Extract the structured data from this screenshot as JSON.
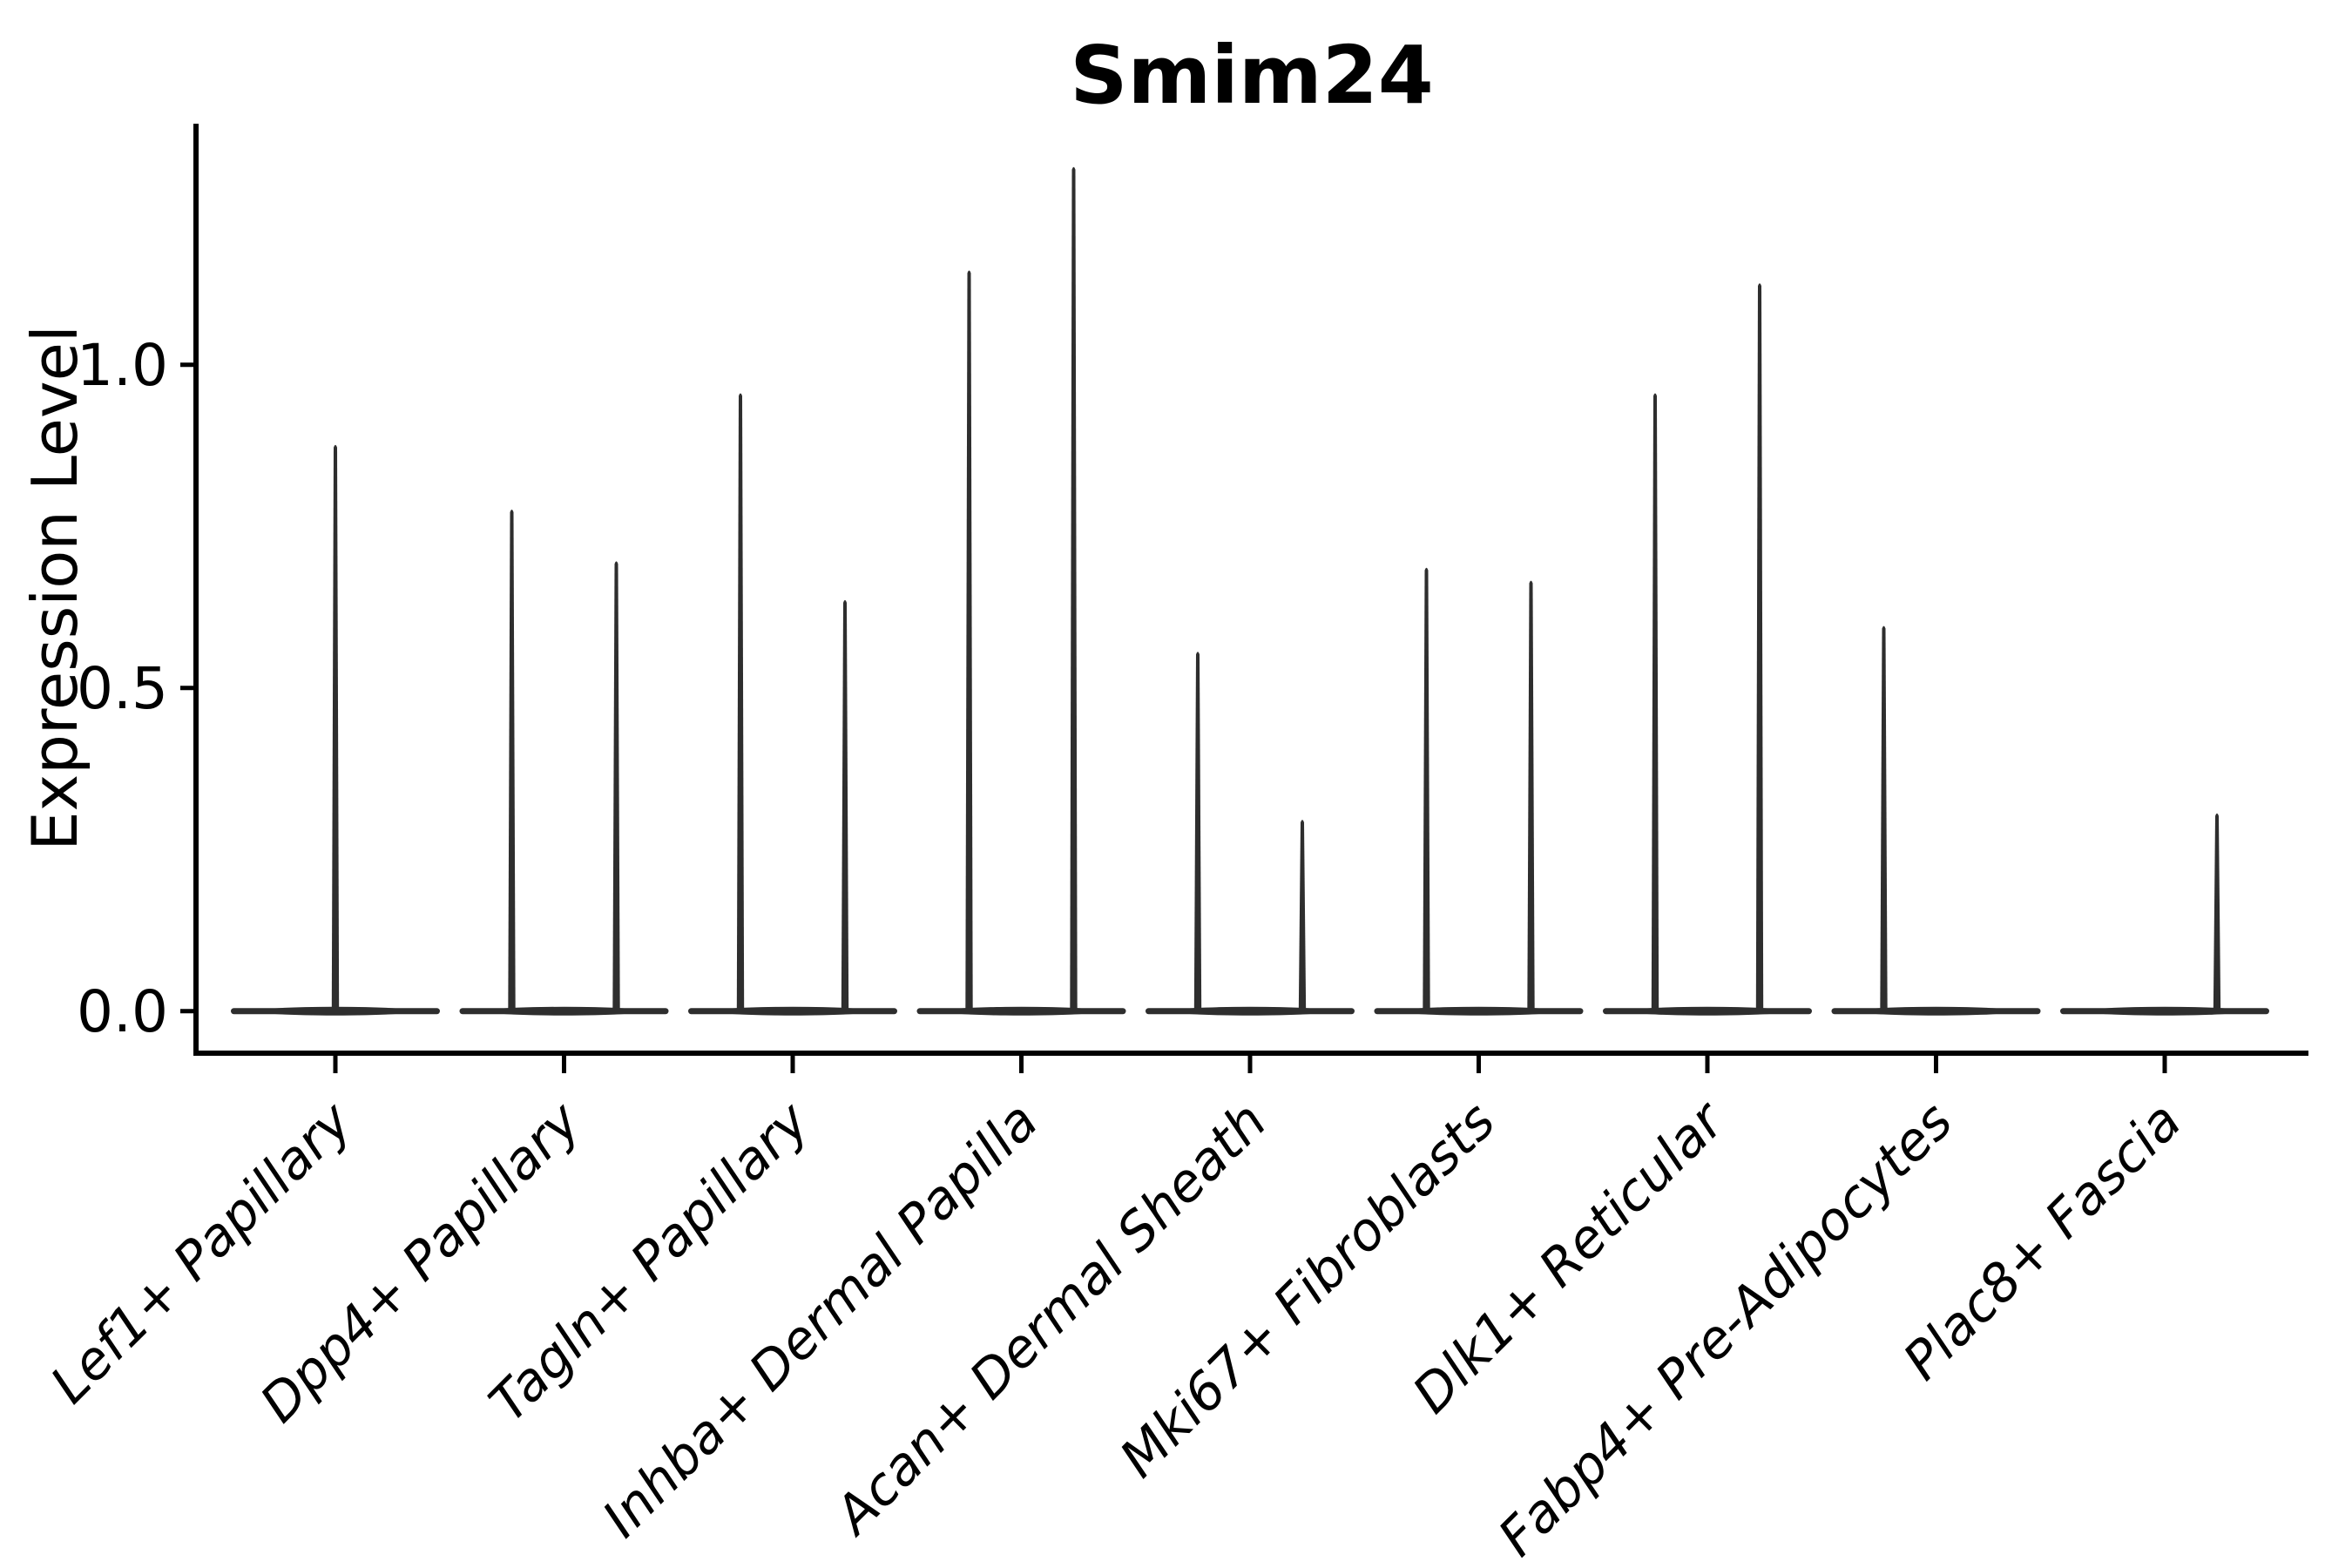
{
  "chart_data": {
    "type": "violin",
    "title": "Smim24",
    "ylabel": "Expression Level",
    "xlabel": "",
    "legend": "none",
    "grid": false,
    "ylim": [
      -0.065,
      1.373
    ],
    "yticks": [
      {
        "value": 0.0,
        "label": "0.0"
      },
      {
        "value": 0.5,
        "label": "0.5"
      },
      {
        "value": 1.0,
        "label": "1.0"
      }
    ],
    "categories": [
      "Lef1+ Papillary",
      "Dpp4+ Papillary",
      "Tagln+ Papillary",
      "Inhba+ Dermal Papilla",
      "Acan+ Dermal Sheath",
      "Mki67+ Fibroblasts",
      "Dlk1+ Reticular",
      "Fabp4+ Pre-Adipocytes",
      "Plac8+ Fascia"
    ],
    "violins": [
      {
        "category": "Lef1+ Papillary",
        "baseline_value": 0.0,
        "spikes": [
          {
            "pos": "center",
            "value": 0.88
          }
        ]
      },
      {
        "category": "Dpp4+ Papillary",
        "baseline_value": 0.0,
        "spikes": [
          {
            "pos": "left",
            "value": 0.78
          },
          {
            "pos": "right",
            "value": 0.7
          }
        ]
      },
      {
        "category": "Tagln+ Papillary",
        "baseline_value": 0.0,
        "spikes": [
          {
            "pos": "left",
            "value": 0.96
          },
          {
            "pos": "right",
            "value": 0.64
          }
        ]
      },
      {
        "category": "Inhba+ Dermal Papilla",
        "baseline_value": 0.0,
        "spikes": [
          {
            "pos": "left",
            "value": 1.15
          },
          {
            "pos": "right",
            "value": 1.31
          }
        ]
      },
      {
        "category": "Acan+ Dermal Sheath",
        "baseline_value": 0.0,
        "spikes": [
          {
            "pos": "left",
            "value": 0.56
          },
          {
            "pos": "right",
            "value": 0.3
          }
        ]
      },
      {
        "category": "Mki67+ Fibroblasts",
        "baseline_value": 0.0,
        "spikes": [
          {
            "pos": "left",
            "value": 0.69
          },
          {
            "pos": "right",
            "value": 0.67
          }
        ]
      },
      {
        "category": "Dlk1+ Reticular",
        "baseline_value": 0.0,
        "spikes": [
          {
            "pos": "left",
            "value": 0.96
          },
          {
            "pos": "right",
            "value": 1.13
          }
        ]
      },
      {
        "category": "Fabp4+ Pre-Adipocytes",
        "baseline_value": 0.0,
        "spikes": [
          {
            "pos": "left",
            "value": 0.6
          }
        ]
      },
      {
        "category": "Plac8+ Fascia",
        "baseline_value": 0.0,
        "spikes": [
          {
            "pos": "right",
            "value": 0.31
          }
        ]
      }
    ],
    "colors": {
      "violin": "#2e2e2e",
      "axis": "#000000",
      "text": "#000000",
      "background": "#ffffff"
    }
  }
}
